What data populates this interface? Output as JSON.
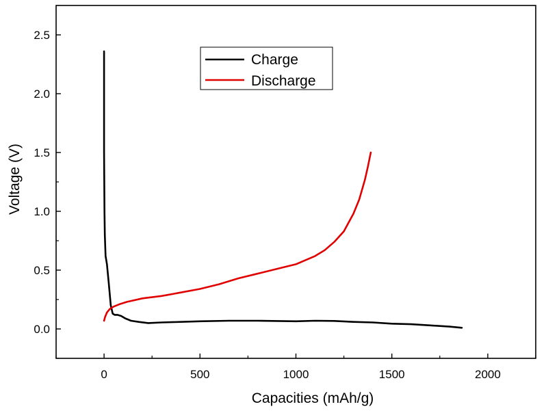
{
  "chart_data": {
    "type": "line",
    "xlabel": "Capacities (mAh/g)",
    "ylabel": "Voltage (V)",
    "xlim": [
      -250,
      2250
    ],
    "ylim": [
      -0.25,
      2.75
    ],
    "xticks": [
      0,
      500,
      1000,
      1500,
      2000
    ],
    "xtick_labels": [
      "0",
      "500",
      "1000",
      "1500",
      "2000"
    ],
    "yticks": [
      0.0,
      0.5,
      1.0,
      1.5,
      2.0,
      2.5
    ],
    "ytick_labels": [
      "0.0",
      "0.5",
      "1.0",
      "1.5",
      "2.0",
      "2.5"
    ],
    "grid": false,
    "legend_position": "top-center",
    "series": [
      {
        "name": "Charge",
        "color": "#000000",
        "x": [
          0,
          0,
          2,
          4,
          8,
          15,
          25,
          35,
          45,
          55,
          70,
          90,
          110,
          140,
          180,
          230,
          300,
          400,
          500,
          650,
          800,
          1000,
          1100,
          1200,
          1300,
          1400,
          1500,
          1600,
          1700,
          1800,
          1865
        ],
        "y": [
          2.36,
          1.5,
          1.0,
          0.8,
          0.62,
          0.55,
          0.38,
          0.2,
          0.13,
          0.12,
          0.12,
          0.11,
          0.09,
          0.07,
          0.06,
          0.05,
          0.055,
          0.06,
          0.065,
          0.07,
          0.07,
          0.065,
          0.07,
          0.068,
          0.06,
          0.055,
          0.045,
          0.04,
          0.03,
          0.02,
          0.01
        ]
      },
      {
        "name": "Discharge",
        "color": "#e00000",
        "x": [
          0,
          5,
          15,
          30,
          50,
          80,
          120,
          200,
          300,
          400,
          500,
          600,
          700,
          800,
          900,
          1000,
          1100,
          1150,
          1200,
          1250,
          1300,
          1330,
          1360,
          1375,
          1390
        ],
        "y": [
          0.07,
          0.1,
          0.14,
          0.17,
          0.19,
          0.21,
          0.23,
          0.26,
          0.28,
          0.31,
          0.34,
          0.38,
          0.43,
          0.47,
          0.51,
          0.55,
          0.62,
          0.67,
          0.74,
          0.83,
          0.98,
          1.1,
          1.27,
          1.38,
          1.5
        ]
      }
    ]
  }
}
